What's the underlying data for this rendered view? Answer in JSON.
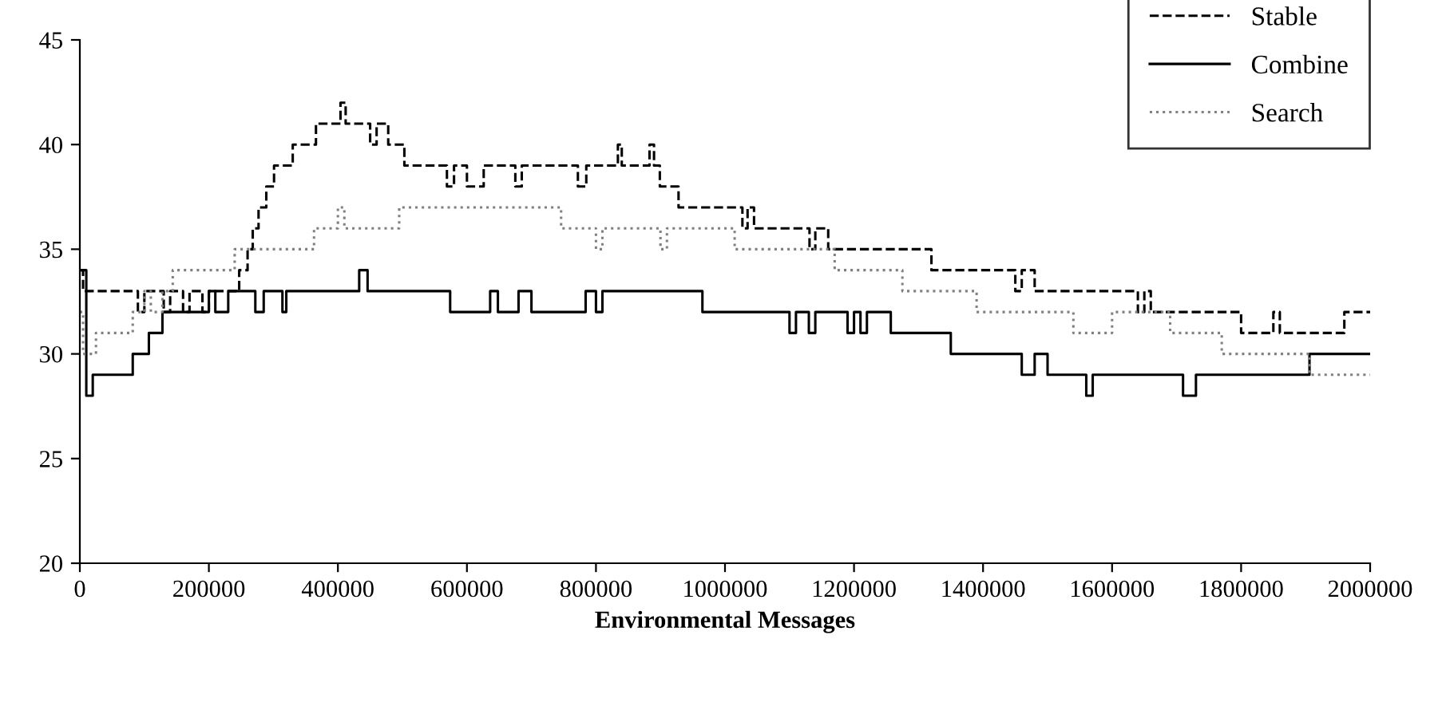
{
  "chart_data": {
    "type": "step",
    "xlabel": "Environmental Messages",
    "xlim": [
      0,
      2000000
    ],
    "xticks": [
      0,
      200000,
      400000,
      600000,
      800000,
      1000000,
      1200000,
      1400000,
      1600000,
      1800000,
      2000000
    ],
    "ylim": [
      20,
      45
    ],
    "yticks": [
      20,
      25,
      30,
      35,
      40,
      45
    ],
    "grid": false,
    "legend": "top right",
    "series": [
      {
        "name": "Stable",
        "color": "#000000",
        "line_style": "dashed",
        "x": [
          0,
          5000,
          10000,
          90000,
          100000,
          130000,
          140000,
          160000,
          170000,
          190000,
          200000,
          247000,
          260000,
          268000,
          277000,
          289000,
          301000,
          330000,
          366000,
          404000,
          412000,
          450000,
          460000,
          478000,
          503000,
          569000,
          580000,
          600000,
          626000,
          675000,
          685000,
          693000,
          772000,
          785000,
          797000,
          834000,
          840000,
          883000,
          890000,
          899000,
          928000,
          1027000,
          1035000,
          1045000,
          1057000,
          1131000,
          1140000,
          1160000,
          1183000,
          1320000,
          1450000,
          1460000,
          1480000,
          1640000,
          1650000,
          1660000,
          1800000,
          1850000,
          1860000,
          1960000,
          2000000
        ],
        "values": [
          34,
          33,
          33,
          32,
          33,
          32,
          33,
          32,
          33,
          32,
          33,
          34,
          35,
          36,
          37,
          38,
          39,
          40,
          41,
          42,
          41,
          40,
          41,
          40,
          39,
          38,
          39,
          38,
          39,
          38,
          39,
          39,
          38,
          39,
          39,
          40,
          39,
          40,
          39,
          38,
          37,
          36,
          37,
          36,
          36,
          35,
          36,
          35,
          35,
          34,
          33,
          34,
          33,
          32,
          33,
          32,
          31,
          32,
          31,
          32,
          32
        ]
      },
      {
        "name": "Combine",
        "color": "#000000",
        "line_style": "solid",
        "x": [
          0,
          10000,
          20000,
          82000,
          107000,
          128000,
          200000,
          210000,
          230000,
          247000,
          272000,
          285000,
          314000,
          320000,
          433000,
          446000,
          574000,
          636000,
          648000,
          680000,
          700000,
          784000,
          800000,
          810000,
          965000,
          1100000,
          1110000,
          1130000,
          1140000,
          1190000,
          1200000,
          1210000,
          1220000,
          1257000,
          1350000,
          1460000,
          1480000,
          1500000,
          1510000,
          1560000,
          1570000,
          1710000,
          1730000,
          1906000,
          2000000
        ],
        "values": [
          34,
          28,
          29,
          30,
          31,
          32,
          33,
          32,
          33,
          33,
          32,
          33,
          32,
          33,
          34,
          33,
          32,
          33,
          32,
          33,
          32,
          33,
          32,
          33,
          32,
          31,
          32,
          31,
          32,
          31,
          32,
          31,
          32,
          31,
          30,
          29,
          30,
          29,
          29,
          28,
          29,
          28,
          29,
          30,
          30
        ]
      },
      {
        "name": "Search",
        "color": "#808080",
        "line_style": "dotted",
        "x": [
          0,
          5000,
          25000,
          82000,
          100000,
          110000,
          128000,
          144000,
          240000,
          363000,
          400000,
          410000,
          495000,
          746000,
          800000,
          810000,
          900000,
          910000,
          1015000,
          1170000,
          1275000,
          1390000,
          1540000,
          1600000,
          1690000,
          1770000,
          1906000,
          2000000
        ],
        "values": [
          32,
          30,
          31,
          32,
          33,
          32,
          33,
          34,
          35,
          36,
          37,
          36,
          37,
          36,
          35,
          36,
          35,
          36,
          35,
          34,
          33,
          32,
          31,
          32,
          31,
          30,
          29,
          29
        ]
      }
    ]
  }
}
